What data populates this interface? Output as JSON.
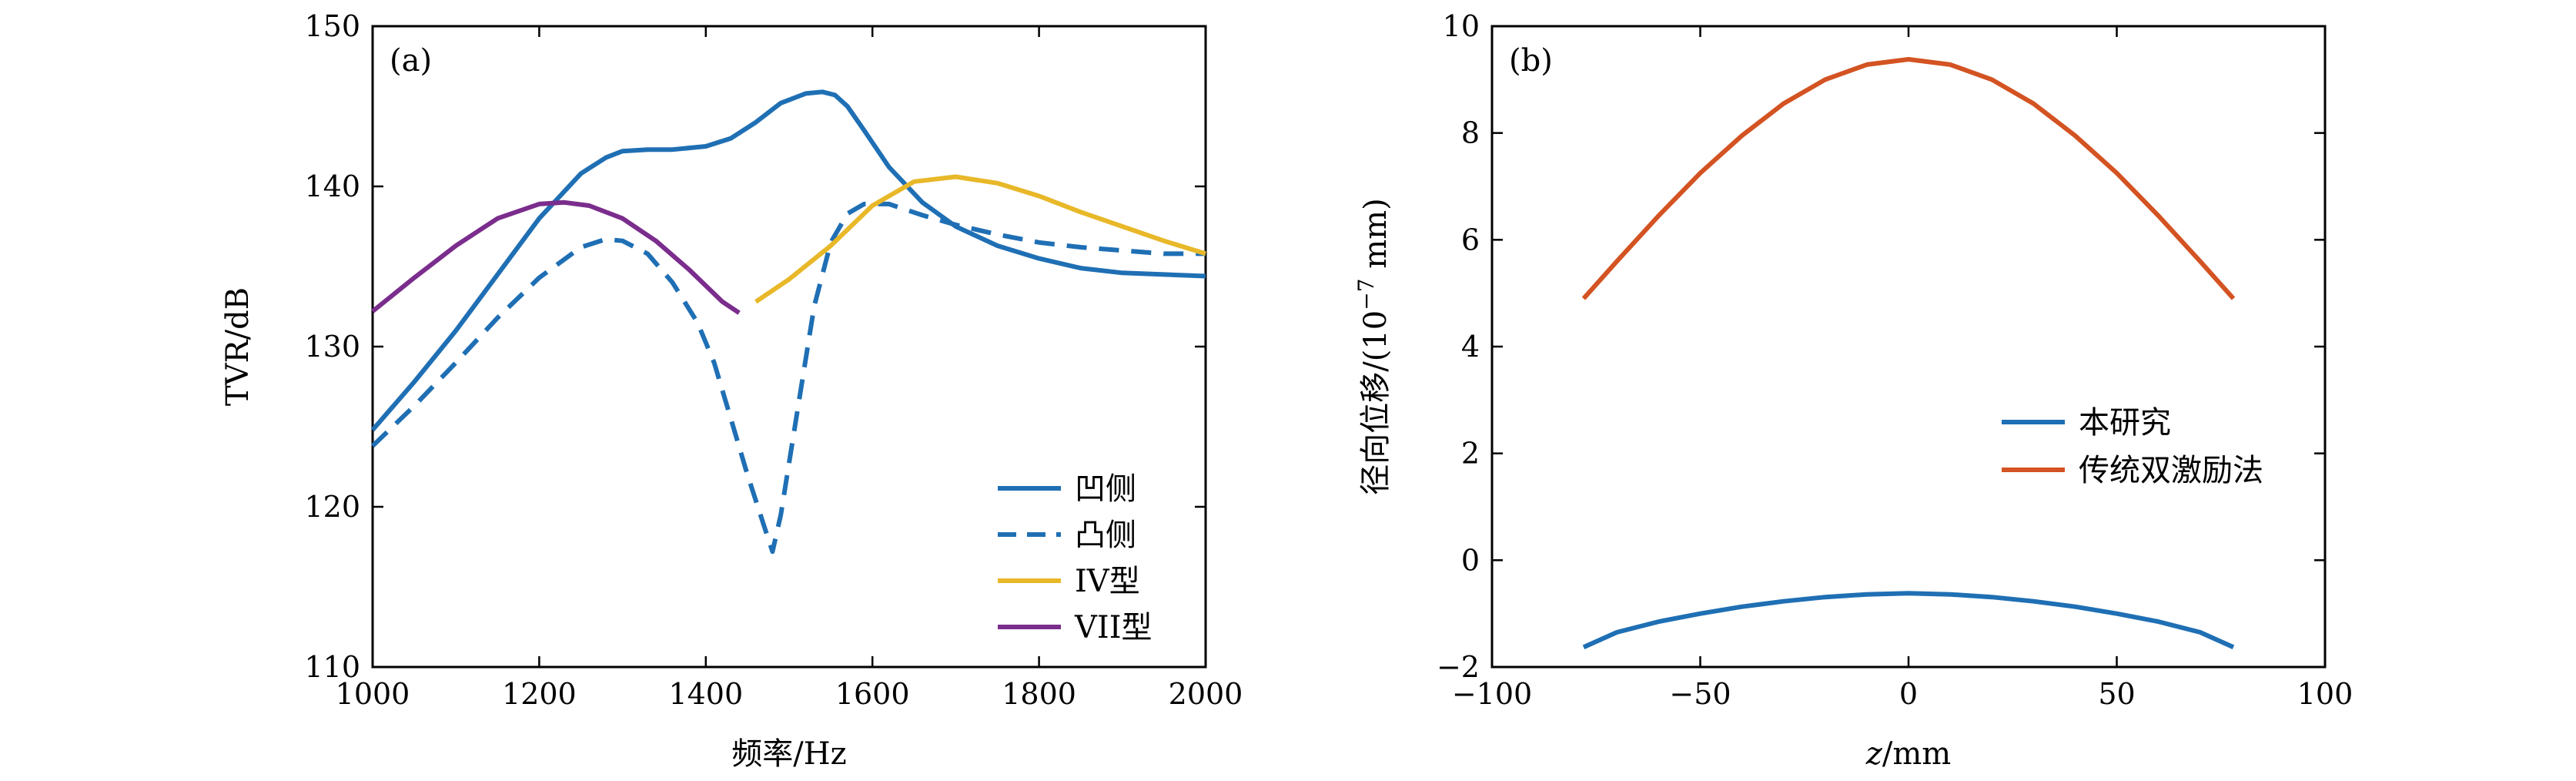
{
  "chart_data": [
    {
      "type": "line",
      "panel": "(a)",
      "xlabel": "频率/Hz",
      "ylabel": "TVR/dB",
      "xlim": [
        1000,
        2000
      ],
      "ylim": [
        110,
        150
      ],
      "xticks": [
        1000,
        1200,
        1400,
        1600,
        1800,
        2000
      ],
      "yticks": [
        110,
        120,
        130,
        140,
        150
      ],
      "grid": false,
      "legend_position": "lower-right",
      "series": [
        {
          "name": "凹侧",
          "color": "#1f6fb4",
          "dash": "solid",
          "x": [
            1000,
            1050,
            1100,
            1150,
            1200,
            1250,
            1280,
            1300,
            1330,
            1360,
            1400,
            1430,
            1460,
            1490,
            1520,
            1540,
            1555,
            1570,
            1590,
            1620,
            1660,
            1700,
            1750,
            1800,
            1850,
            1900,
            1950,
            2000
          ],
          "y": [
            124.8,
            127.8,
            131.0,
            134.5,
            138.0,
            140.8,
            141.8,
            142.2,
            142.3,
            142.3,
            142.5,
            143.0,
            144.0,
            145.2,
            145.8,
            145.9,
            145.7,
            145.0,
            143.5,
            141.2,
            139.0,
            137.5,
            136.3,
            135.5,
            134.9,
            134.6,
            134.5,
            134.4
          ]
        },
        {
          "name": "凸侧",
          "color": "#1f6fb4",
          "dash": "dashed",
          "x": [
            1000,
            1050,
            1100,
            1150,
            1200,
            1250,
            1280,
            1300,
            1330,
            1360,
            1390,
            1410,
            1430,
            1450,
            1470,
            1480,
            1490,
            1510,
            1530,
            1550,
            1570,
            1590,
            1620,
            1660,
            1700,
            1750,
            1800,
            1850,
            1900,
            1950,
            2000
          ],
          "y": [
            123.8,
            126.3,
            129.0,
            131.8,
            134.3,
            136.2,
            136.7,
            136.6,
            135.8,
            134.0,
            131.5,
            129.0,
            125.5,
            122.0,
            118.8,
            117.2,
            119.5,
            126.0,
            132.5,
            136.5,
            138.3,
            138.9,
            138.9,
            138.2,
            137.6,
            137.0,
            136.5,
            136.2,
            136.0,
            135.8,
            135.8
          ]
        },
        {
          "name": "IV型",
          "color": "#e8b829",
          "dash": "solid",
          "x": [
            1460,
            1500,
            1550,
            1600,
            1650,
            1700,
            1750,
            1800,
            1850,
            1900,
            1950,
            2000
          ],
          "y": [
            132.8,
            134.2,
            136.3,
            138.8,
            140.3,
            140.6,
            140.2,
            139.4,
            138.4,
            137.5,
            136.6,
            135.8
          ]
        },
        {
          "name": "VII型",
          "color": "#7a2d8c",
          "dash": "solid",
          "x": [
            1000,
            1050,
            1100,
            1150,
            1200,
            1230,
            1260,
            1300,
            1340,
            1380,
            1420,
            1440
          ],
          "y": [
            132.2,
            134.3,
            136.3,
            138.0,
            138.9,
            139.0,
            138.8,
            138.0,
            136.6,
            134.8,
            132.8,
            132.1
          ]
        }
      ]
    },
    {
      "type": "line",
      "panel": "(b)",
      "xlabel_italic": "z",
      "xlabel_rest": "/mm",
      "ylabel_main": "径向位移/(10",
      "ylabel_sup": "−7",
      "ylabel_end": " mm)",
      "xlim": [
        -100,
        100
      ],
      "ylim": [
        -2,
        10
      ],
      "xticks": [
        -100,
        -50,
        0,
        50,
        100
      ],
      "xtick_labels": [
        "−100",
        "−50",
        "0",
        "50",
        "100"
      ],
      "yticks": [
        -2,
        0,
        2,
        4,
        6,
        8,
        10
      ],
      "ytick_labels": [
        "−2",
        "0",
        "2",
        "4",
        "6",
        "8",
        "10"
      ],
      "grid": false,
      "legend_position": "center-right",
      "series": [
        {
          "name": "本研究",
          "color": "#1f6fb4",
          "dash": "solid",
          "x": [
            -78,
            -70,
            -60,
            -50,
            -40,
            -30,
            -20,
            -10,
            0,
            10,
            20,
            30,
            40,
            50,
            60,
            70,
            78
          ],
          "y": [
            -1.63,
            -1.35,
            -1.15,
            -1.0,
            -0.87,
            -0.77,
            -0.69,
            -0.64,
            -0.62,
            -0.64,
            -0.69,
            -0.77,
            -0.87,
            -1.0,
            -1.15,
            -1.35,
            -1.63
          ]
        },
        {
          "name": "传统双激励法",
          "color": "#d35322",
          "dash": "solid",
          "x": [
            -78,
            -70,
            -60,
            -50,
            -40,
            -30,
            -20,
            -10,
            0,
            10,
            20,
            30,
            40,
            50,
            60,
            70,
            78
          ],
          "y": [
            4.9,
            5.6,
            6.45,
            7.25,
            7.95,
            8.55,
            9.0,
            9.28,
            9.38,
            9.28,
            9.0,
            8.55,
            7.95,
            7.25,
            6.45,
            5.6,
            4.9
          ]
        }
      ]
    }
  ]
}
